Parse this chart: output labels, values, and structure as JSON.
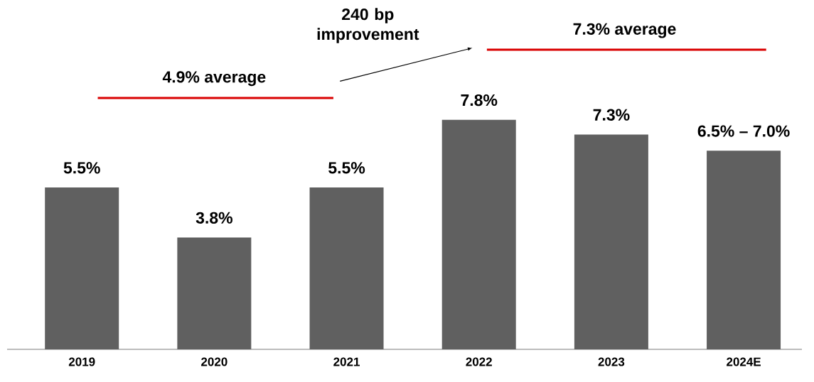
{
  "chart_data": {
    "type": "bar",
    "categories": [
      "2019",
      "2020",
      "2021",
      "2022",
      "2023",
      "2024E"
    ],
    "values": [
      5.5,
      3.8,
      5.5,
      7.8,
      7.3,
      6.75
    ],
    "value_labels": [
      "5.5%",
      "3.8%",
      "5.5%",
      "7.8%",
      "7.3%",
      null
    ],
    "color": "#606060",
    "annotations": [
      {
        "text": "6.5% – 7.0%",
        "x": "2024E",
        "y": 6.75
      },
      "4.9% average",
      "7.3% average",
      "240 bp improvement"
    ]
  }
}
